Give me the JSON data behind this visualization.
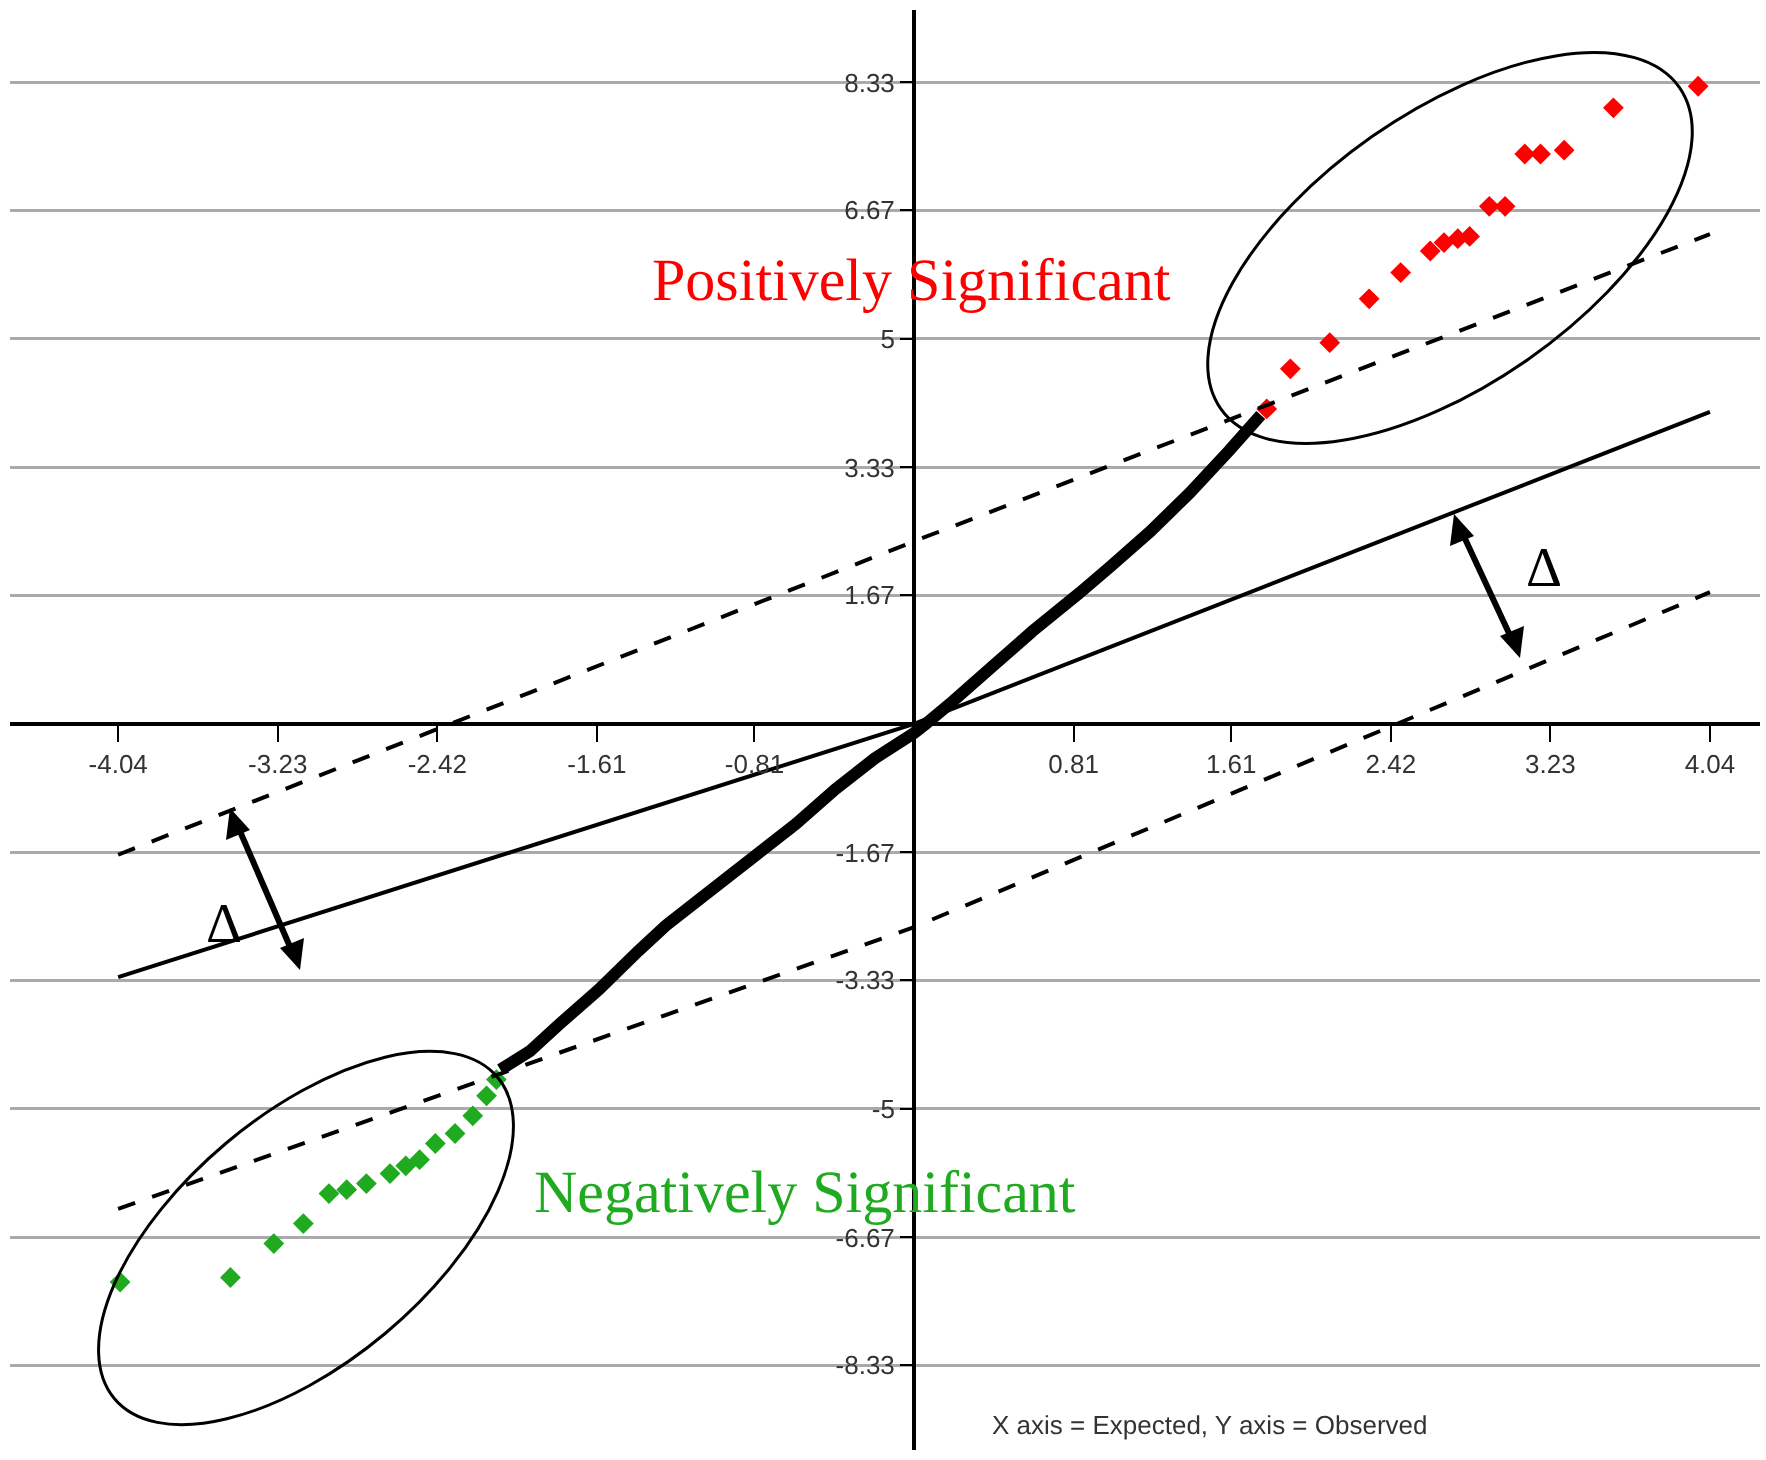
{
  "chart_data": {
    "type": "scatter",
    "xlim": [
      -4.589,
      4.294
    ],
    "ylim": [
      -9.43,
      9.27
    ],
    "xticks": [
      -4.04,
      -3.23,
      -2.42,
      -1.61,
      -0.81,
      0.81,
      1.61,
      2.42,
      3.23,
      4.04
    ],
    "yticks": [
      8.33,
      6.67,
      5,
      3.33,
      1.67,
      -1.67,
      -3.33,
      -5,
      -6.67,
      -8.33
    ],
    "grid": "y",
    "annotations": [
      "Δ",
      "Δ",
      "X axis = Expected, Y axis = Observed"
    ],
    "series": [
      {
        "type": "line",
        "color": "#000000",
        "line_style": "solid",
        "x": [
          -2.1,
          -1.95,
          -1.8,
          -1.6,
          -1.4,
          -1.26,
          -1.0,
          -0.8,
          -0.6,
          -0.4,
          -0.2,
          0,
          0.06,
          0.2,
          0.4,
          0.6,
          0.84,
          1.0,
          1.2,
          1.4,
          1.6,
          1.76
        ],
        "values": [
          -4.49,
          -4.25,
          -3.9,
          -3.45,
          -2.95,
          -2.62,
          -2.1,
          -1.7,
          -1.3,
          -0.85,
          -0.45,
          -0.12,
          0,
          0.3,
          0.75,
          1.2,
          1.7,
          2.05,
          2.5,
          3.0,
          3.55,
          4.01
        ]
      },
      {
        "name": "Positively Significant",
        "color": "#ff0000",
        "marker": "diamond",
        "x": [
          1.79,
          1.91,
          2.11,
          2.31,
          2.47,
          2.62,
          2.69,
          2.76,
          2.82,
          2.92,
          3.0,
          3.1,
          3.18,
          3.3,
          3.55,
          3.98
        ],
        "values": [
          4.09,
          4.61,
          4.95,
          5.52,
          5.86,
          6.14,
          6.25,
          6.3,
          6.33,
          6.72,
          6.72,
          7.4,
          7.4,
          7.45,
          8.0,
          8.28
        ]
      },
      {
        "name": "Negatively Significant",
        "color": "#1faa1f",
        "marker": "diamond",
        "x": [
          -4.03,
          -3.47,
          -3.25,
          -3.1,
          -2.97,
          -2.88,
          -2.78,
          -2.66,
          -2.58,
          -2.51,
          -2.43,
          -2.33,
          -2.24,
          -2.17,
          -2.12
        ],
        "values": [
          -7.25,
          -7.19,
          -6.75,
          -6.49,
          -6.1,
          -6.05,
          -5.97,
          -5.84,
          -5.74,
          -5.66,
          -5.45,
          -5.32,
          -5.09,
          -4.83,
          -4.62
        ]
      },
      {
        "type": "line",
        "color": "#000000",
        "line_style": "solid",
        "x": [
          -4.04,
          0,
          4.04
        ],
        "values": [
          -3.29,
          0,
          4.05
        ]
      },
      {
        "type": "line",
        "color": "#000000",
        "line_style": "dashed",
        "x": [
          -4.04,
          0,
          4.04
        ],
        "values": [
          -1.7,
          2.37,
          6.36
        ]
      },
      {
        "type": "line",
        "color": "#000000",
        "line_style": "dashed",
        "x": [
          -4.04,
          0,
          4.04
        ],
        "values": [
          -6.3,
          -2.64,
          1.71
        ]
      }
    ]
  }
}
